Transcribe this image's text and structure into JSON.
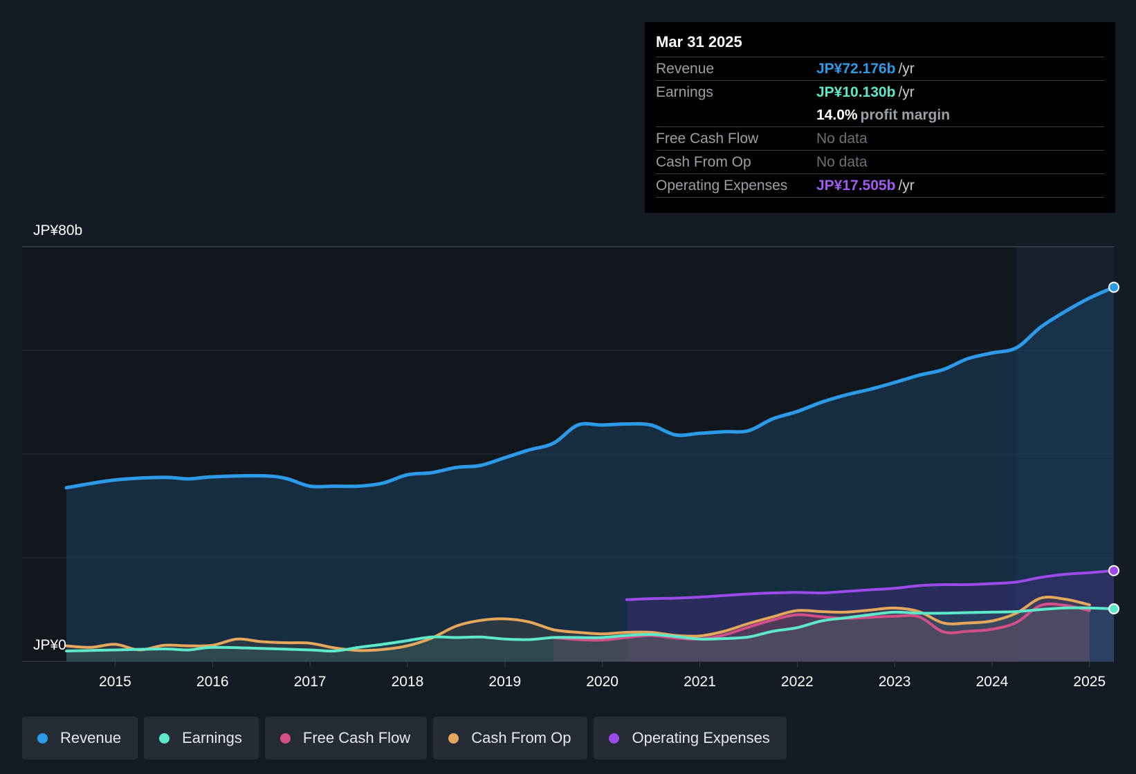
{
  "chart_data": {
    "type": "line",
    "currency_unit": "JP¥ billions",
    "y_axis_labels": {
      "top": "JP¥80b",
      "bottom": "JP¥0"
    },
    "ylim": [
      0,
      80
    ],
    "xlim": [
      2014.5,
      2025.25
    ],
    "x_ticks": [
      "2015",
      "2016",
      "2017",
      "2018",
      "2019",
      "2020",
      "2021",
      "2022",
      "2023",
      "2024",
      "2025"
    ],
    "highlight_start": 2024.25,
    "series": [
      {
        "key": "revenue",
        "name": "Revenue",
        "color": "#2d9ae8",
        "fill": true,
        "points": [
          [
            2014.5,
            33.5
          ],
          [
            2015,
            35
          ],
          [
            2015.5,
            35.5
          ],
          [
            2015.75,
            35.2
          ],
          [
            2016,
            35.6
          ],
          [
            2016.5,
            35.8
          ],
          [
            2016.75,
            35.3
          ],
          [
            2017,
            33.8
          ],
          [
            2017.25,
            33.8
          ],
          [
            2017.5,
            33.8
          ],
          [
            2017.75,
            34.4
          ],
          [
            2018,
            36
          ],
          [
            2018.25,
            36.4
          ],
          [
            2018.5,
            37.4
          ],
          [
            2018.75,
            37.8
          ],
          [
            2019,
            39.3
          ],
          [
            2019.25,
            40.8
          ],
          [
            2019.5,
            42.1
          ],
          [
            2019.75,
            45.6
          ],
          [
            2020,
            45.6
          ],
          [
            2020.25,
            45.8
          ],
          [
            2020.5,
            45.6
          ],
          [
            2020.75,
            43.7
          ],
          [
            2021,
            44
          ],
          [
            2021.25,
            44.3
          ],
          [
            2021.5,
            44.5
          ],
          [
            2021.75,
            46.8
          ],
          [
            2022,
            48.2
          ],
          [
            2022.25,
            50
          ],
          [
            2022.5,
            51.4
          ],
          [
            2022.75,
            52.5
          ],
          [
            2023,
            53.8
          ],
          [
            2023.25,
            55.2
          ],
          [
            2023.5,
            56.3
          ],
          [
            2023.75,
            58.4
          ],
          [
            2024,
            59.5
          ],
          [
            2024.25,
            60.5
          ],
          [
            2024.5,
            64.5
          ],
          [
            2024.75,
            67.5
          ],
          [
            2025,
            70.1
          ],
          [
            2025.25,
            72.176
          ]
        ]
      },
      {
        "key": "earnings",
        "name": "Earnings",
        "color": "#5ee8c9",
        "fill": true,
        "points": [
          [
            2014.5,
            2
          ],
          [
            2015,
            2.2
          ],
          [
            2015.5,
            2.4
          ],
          [
            2015.75,
            2.2
          ],
          [
            2016,
            2.7
          ],
          [
            2016.5,
            2.5
          ],
          [
            2017,
            2.2
          ],
          [
            2017.25,
            2
          ],
          [
            2017.5,
            2.7
          ],
          [
            2017.75,
            3.3
          ],
          [
            2018,
            4
          ],
          [
            2018.25,
            4.7
          ],
          [
            2018.5,
            4.6
          ],
          [
            2018.75,
            4.7
          ],
          [
            2019,
            4.3
          ],
          [
            2019.25,
            4.2
          ],
          [
            2019.5,
            4.6
          ],
          [
            2019.75,
            4.6
          ],
          [
            2020,
            4.6
          ],
          [
            2020.25,
            5
          ],
          [
            2020.5,
            5.2
          ],
          [
            2020.75,
            4.8
          ],
          [
            2021,
            4.3
          ],
          [
            2021.25,
            4.4
          ],
          [
            2021.5,
            4.7
          ],
          [
            2021.75,
            5.8
          ],
          [
            2022,
            6.5
          ],
          [
            2022.25,
            7.8
          ],
          [
            2022.5,
            8.4
          ],
          [
            2022.75,
            9
          ],
          [
            2023,
            9.5
          ],
          [
            2023.25,
            9.3
          ],
          [
            2023.5,
            9.3
          ],
          [
            2023.75,
            9.4
          ],
          [
            2024,
            9.5
          ],
          [
            2024.25,
            9.6
          ],
          [
            2024.5,
            10
          ],
          [
            2024.75,
            10.3
          ],
          [
            2025,
            10.3
          ],
          [
            2025.25,
            10.13
          ]
        ]
      },
      {
        "key": "fcf",
        "name": "Free Cash Flow",
        "color": "#d34f87",
        "fill": true,
        "points": [
          [
            2019.5,
            4.6
          ],
          [
            2019.75,
            4.2
          ],
          [
            2020,
            4.1
          ],
          [
            2020.25,
            4.6
          ],
          [
            2020.5,
            5
          ],
          [
            2020.75,
            4.5
          ],
          [
            2021,
            4.3
          ],
          [
            2021.25,
            5.1
          ],
          [
            2021.5,
            6.6
          ],
          [
            2021.75,
            8
          ],
          [
            2022,
            9
          ],
          [
            2022.25,
            8.6
          ],
          [
            2022.5,
            8.3
          ],
          [
            2022.75,
            8.5
          ],
          [
            2023,
            8.7
          ],
          [
            2023.25,
            8.6
          ],
          [
            2023.5,
            5.7
          ],
          [
            2023.75,
            5.8
          ],
          [
            2024,
            6.2
          ],
          [
            2024.25,
            7.5
          ],
          [
            2024.5,
            10.8
          ],
          [
            2024.75,
            10.8
          ],
          [
            2025,
            9.8
          ]
        ]
      },
      {
        "key": "cfo",
        "name": "Cash From Op",
        "color": "#e4a75c",
        "fill": true,
        "points": [
          [
            2014.5,
            3
          ],
          [
            2014.75,
            2.7
          ],
          [
            2015,
            3.3
          ],
          [
            2015.25,
            2.2
          ],
          [
            2015.5,
            3.1
          ],
          [
            2015.75,
            3
          ],
          [
            2016,
            3.1
          ],
          [
            2016.25,
            4.3
          ],
          [
            2016.5,
            3.8
          ],
          [
            2016.75,
            3.6
          ],
          [
            2017,
            3.5
          ],
          [
            2017.25,
            2.6
          ],
          [
            2017.5,
            2.1
          ],
          [
            2017.75,
            2.3
          ],
          [
            2018,
            3
          ],
          [
            2018.25,
            4.5
          ],
          [
            2018.5,
            6.8
          ],
          [
            2018.75,
            7.9
          ],
          [
            2019,
            8.2
          ],
          [
            2019.25,
            7.6
          ],
          [
            2019.5,
            6.1
          ],
          [
            2019.75,
            5.6
          ],
          [
            2020,
            5.3
          ],
          [
            2020.25,
            5.6
          ],
          [
            2020.5,
            5.6
          ],
          [
            2020.75,
            5
          ],
          [
            2021,
            4.9
          ],
          [
            2021.25,
            5.8
          ],
          [
            2021.5,
            7.3
          ],
          [
            2021.75,
            8.6
          ],
          [
            2022,
            9.8
          ],
          [
            2022.25,
            9.6
          ],
          [
            2022.5,
            9.5
          ],
          [
            2022.75,
            9.9
          ],
          [
            2023,
            10.3
          ],
          [
            2023.25,
            9.6
          ],
          [
            2023.5,
            7.4
          ],
          [
            2023.75,
            7.4
          ],
          [
            2024,
            7.8
          ],
          [
            2024.25,
            9.3
          ],
          [
            2024.5,
            12.2
          ],
          [
            2024.75,
            12
          ],
          [
            2025,
            10.9
          ]
        ]
      },
      {
        "key": "opex",
        "name": "Operating Expenses",
        "color": "#9b4be8",
        "fill": true,
        "points": [
          [
            2020.25,
            11.9
          ],
          [
            2020.5,
            12.1
          ],
          [
            2020.75,
            12.2
          ],
          [
            2021,
            12.4
          ],
          [
            2021.25,
            12.7
          ],
          [
            2021.5,
            13
          ],
          [
            2021.75,
            13.2
          ],
          [
            2022,
            13.3
          ],
          [
            2022.25,
            13.2
          ],
          [
            2022.5,
            13.5
          ],
          [
            2022.75,
            13.8
          ],
          [
            2023,
            14.1
          ],
          [
            2023.25,
            14.6
          ],
          [
            2023.5,
            14.8
          ],
          [
            2023.75,
            14.8
          ],
          [
            2024,
            15
          ],
          [
            2024.25,
            15.3
          ],
          [
            2024.5,
            16.2
          ],
          [
            2024.75,
            16.8
          ],
          [
            2025,
            17.1
          ],
          [
            2025.25,
            17.505
          ]
        ]
      }
    ]
  },
  "tooltip": {
    "date": "Mar 31 2025",
    "revenue_label": "Revenue",
    "revenue_value": "JP¥72.176b",
    "earnings_label": "Earnings",
    "earnings_value": "JP¥10.130b",
    "unit": "/yr",
    "margin_value": "14.0%",
    "margin_text": "profit margin",
    "fcf_label": "Free Cash Flow",
    "fcf_value": "No data",
    "cfo_label": "Cash From Op",
    "cfo_value": "No data",
    "opex_label": "Operating Expenses",
    "opex_value": "JP¥17.505b"
  },
  "legend": [
    {
      "label": "Revenue",
      "color": "#2d9ae8"
    },
    {
      "label": "Earnings",
      "color": "#5ee8c9"
    },
    {
      "label": "Free Cash Flow",
      "color": "#d34f87"
    },
    {
      "label": "Cash From Op",
      "color": "#e4a75c"
    },
    {
      "label": "Operating Expenses",
      "color": "#9b4be8"
    }
  ]
}
